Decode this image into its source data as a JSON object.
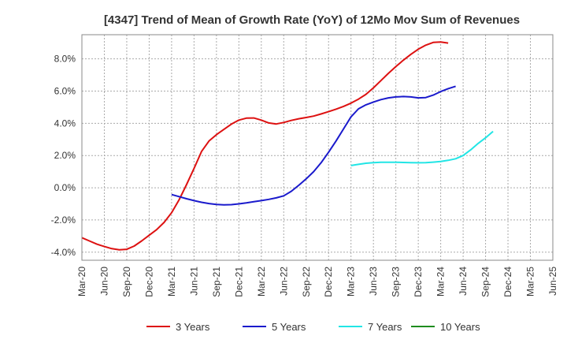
{
  "chart_data": {
    "type": "line",
    "title": "[4347]  Trend of Mean of Growth Rate (YoY) of 12Mo Mov Sum of Revenues",
    "xlabel": "",
    "ylabel": "",
    "y_unit": "%",
    "ylim": [
      -4.5,
      9.5
    ],
    "yticks": [
      -4.0,
      -2.0,
      0.0,
      2.0,
      4.0,
      6.0,
      8.0
    ],
    "ytick_labels": [
      "-4.0%",
      "-2.0%",
      "0.0%",
      "2.0%",
      "4.0%",
      "6.0%",
      "8.0%"
    ],
    "x_start": "Mar-20",
    "xtick_labels": [
      "Mar-20",
      "Jun-20",
      "Sep-20",
      "Dec-20",
      "Mar-21",
      "Jun-21",
      "Sep-21",
      "Dec-21",
      "Mar-22",
      "Jun-22",
      "Sep-22",
      "Dec-22",
      "Mar-23",
      "Jun-23",
      "Sep-23",
      "Dec-23",
      "Mar-24",
      "Jun-24",
      "Sep-24",
      "Dec-24",
      "Mar-25",
      "Jun-25"
    ],
    "grid": true,
    "legend_position": "bottom",
    "series": [
      {
        "name": "3 Years",
        "color": "#dd1111",
        "start_index": 0,
        "values": [
          -3.1,
          -3.3,
          -3.5,
          -3.65,
          -3.78,
          -3.85,
          -3.82,
          -3.62,
          -3.3,
          -2.95,
          -2.6,
          -2.15,
          -1.55,
          -0.75,
          0.2,
          1.2,
          2.25,
          2.9,
          3.3,
          3.62,
          3.95,
          4.2,
          4.32,
          4.33,
          4.2,
          4.02,
          3.96,
          4.05,
          4.18,
          4.28,
          4.36,
          4.45,
          4.58,
          4.72,
          4.88,
          5.05,
          5.25,
          5.5,
          5.8,
          6.2,
          6.65,
          7.1,
          7.52,
          7.92,
          8.28,
          8.6,
          8.85,
          9.02,
          9.05,
          8.98
        ]
      },
      {
        "name": "5 Years",
        "color": "#1a1acc",
        "start_index": 12,
        "values": [
          -0.42,
          -0.55,
          -0.68,
          -0.8,
          -0.9,
          -0.98,
          -1.04,
          -1.06,
          -1.05,
          -1.0,
          -0.94,
          -0.87,
          -0.8,
          -0.72,
          -0.63,
          -0.5,
          -0.22,
          0.15,
          0.55,
          1.0,
          1.55,
          2.2,
          2.9,
          3.65,
          4.4,
          4.9,
          5.15,
          5.32,
          5.47,
          5.58,
          5.64,
          5.66,
          5.64,
          5.58,
          5.6,
          5.75,
          5.97,
          6.15,
          6.3
        ]
      },
      {
        "name": "7 Years",
        "color": "#22e5e5",
        "start_index": 36,
        "values": [
          1.38,
          1.45,
          1.52,
          1.56,
          1.58,
          1.58,
          1.58,
          1.57,
          1.56,
          1.55,
          1.56,
          1.59,
          1.63,
          1.7,
          1.8,
          2.0,
          2.35,
          2.75,
          3.1,
          3.5
        ]
      },
      {
        "name": "10 Years",
        "color": "#1e8c1e",
        "start_index": 0,
        "values": []
      }
    ]
  }
}
